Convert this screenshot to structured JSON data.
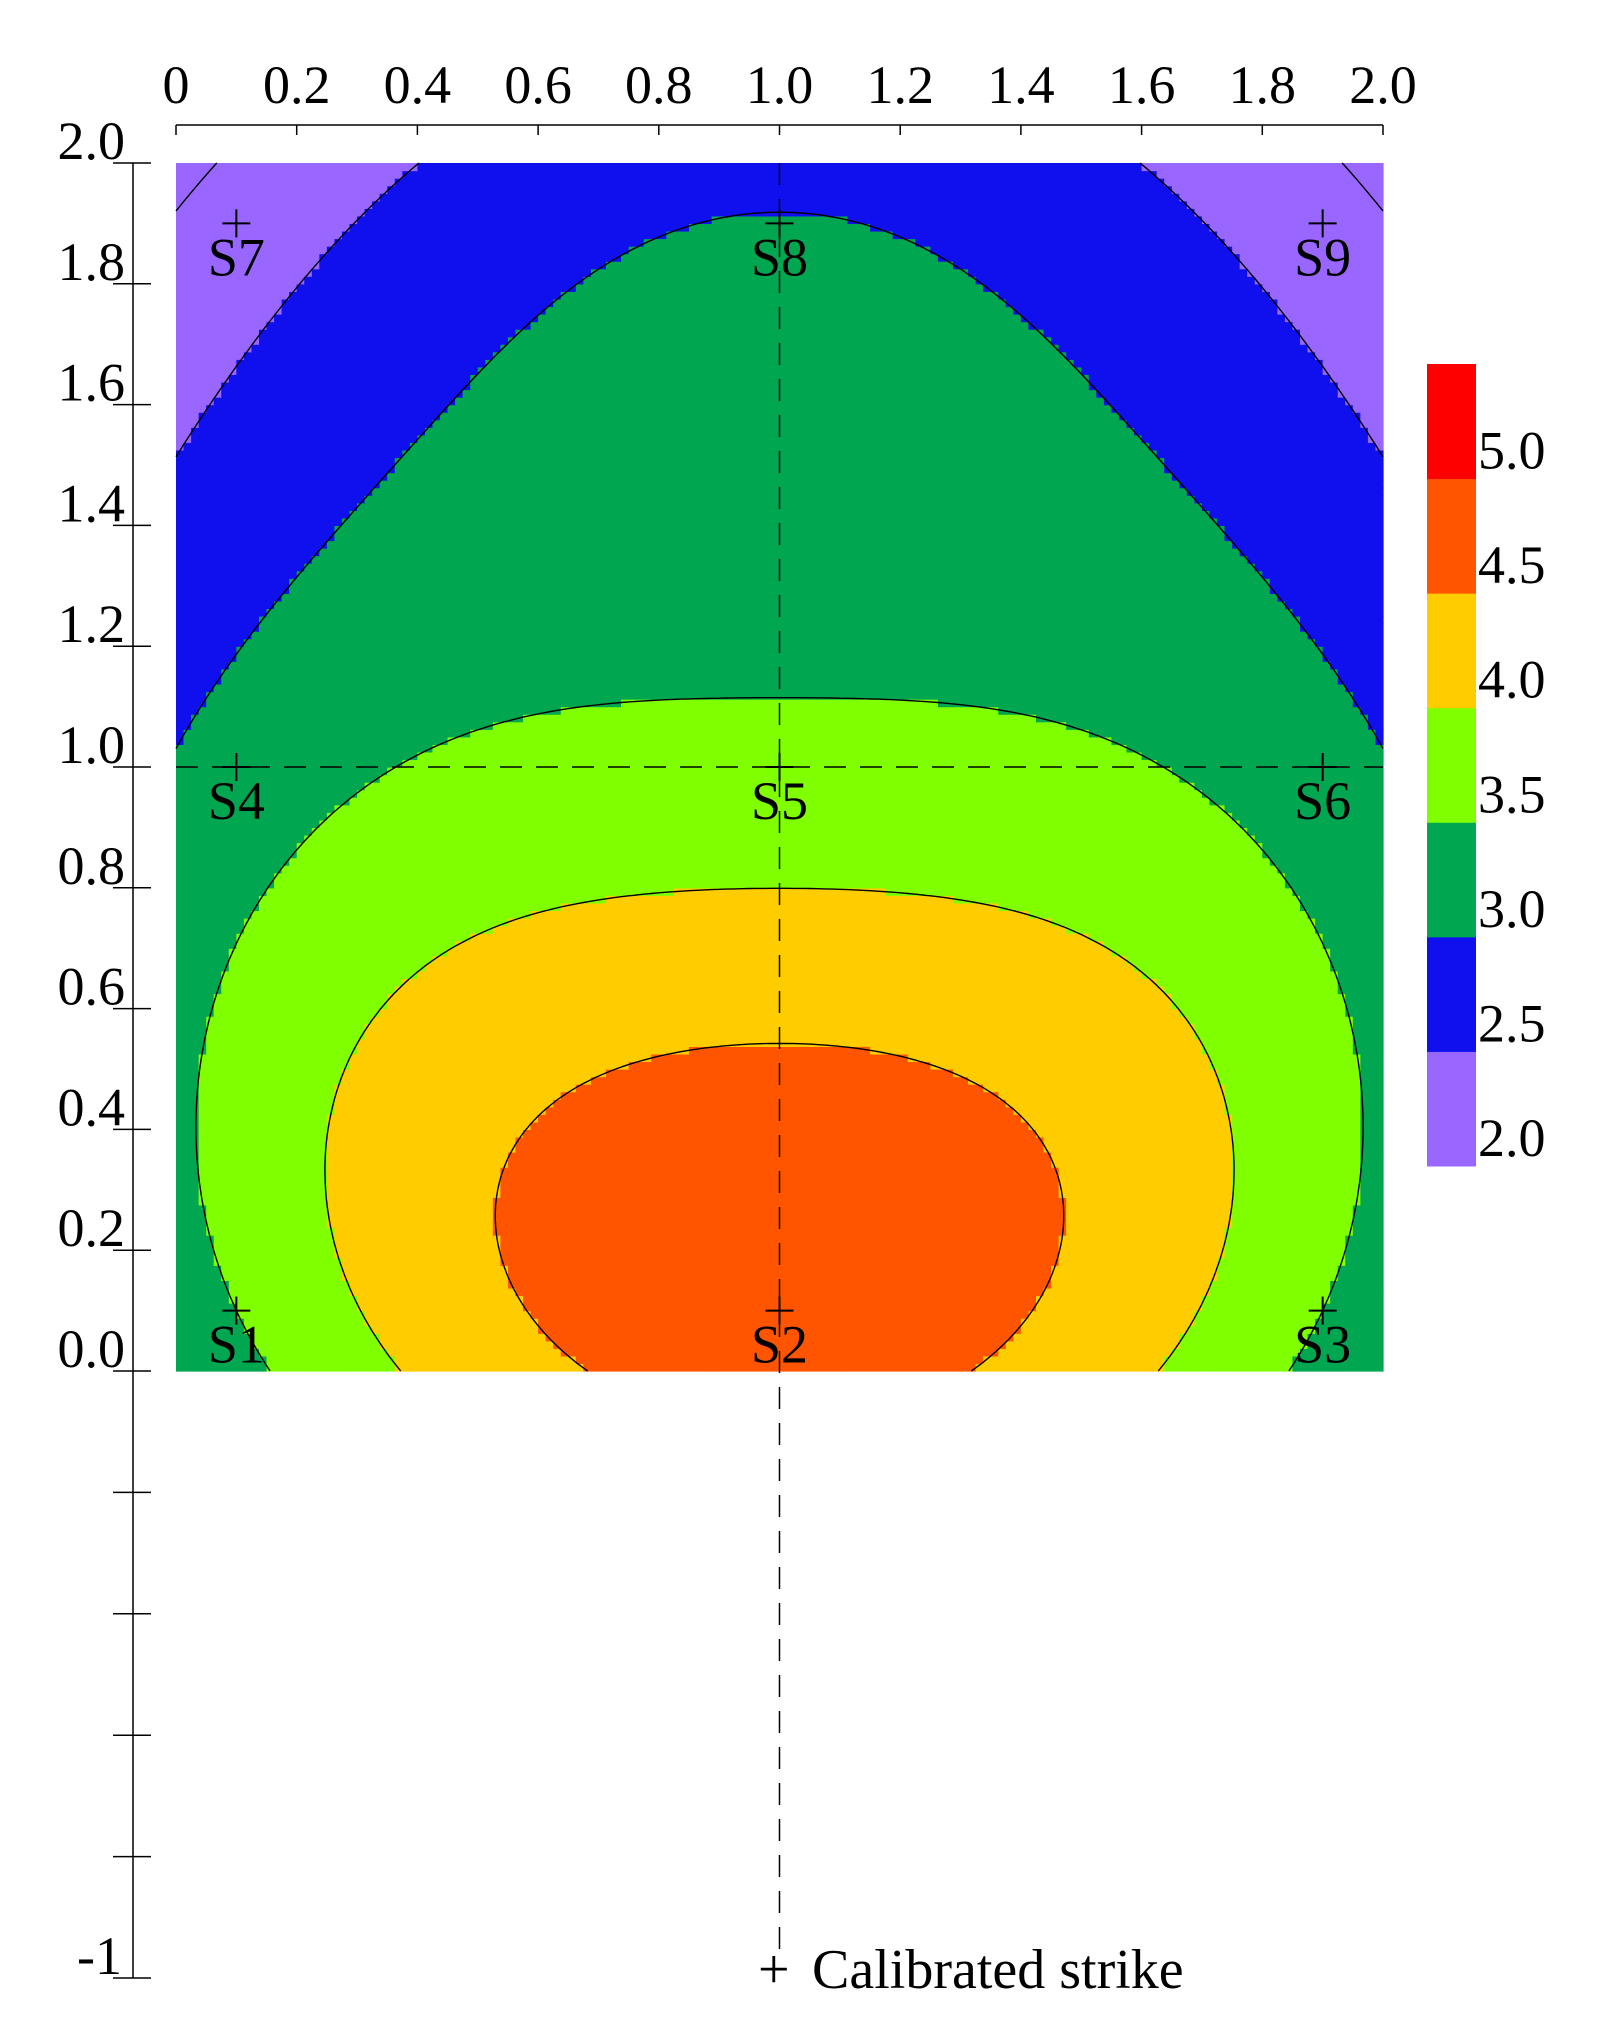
{
  "chart_data": {
    "type": "contour",
    "x_ticks": [
      "0",
      "0.2",
      "0.4",
      "0.6",
      "0.8",
      "1.0",
      "1.2",
      "1.4",
      "1.6",
      "1.8",
      "2.0"
    ],
    "y_ticks": [
      "0.0",
      "0.2",
      "0.4",
      "0.6",
      "0.8",
      "1.0",
      "1.2",
      "1.4",
      "1.6",
      "1.8",
      "2.0"
    ],
    "y_extra_ticks": [
      -0.2,
      -0.4,
      -0.6,
      -0.8
    ],
    "y_bottom_label": "-1",
    "xlim": [
      0,
      2
    ],
    "ylim": [
      -1,
      2
    ],
    "field_extent": {
      "x": [
        0,
        2
      ],
      "y": [
        0,
        2
      ]
    },
    "levels": [
      2.0,
      2.5,
      3.0,
      3.5,
      4.0,
      4.5,
      5.0
    ],
    "colorbar": {
      "bands": [
        {
          "from": 2.0,
          "to": 2.5,
          "color": "#9966ff"
        },
        {
          "from": 2.5,
          "to": 3.0,
          "color": "#1010ee"
        },
        {
          "from": 3.0,
          "to": 3.5,
          "color": "#00a650"
        },
        {
          "from": 3.5,
          "to": 4.0,
          "color": "#80ff00"
        },
        {
          "from": 4.0,
          "to": 4.5,
          "color": "#ffcc00"
        },
        {
          "from": 4.5,
          "to": 5.0,
          "color": "#ff5500"
        },
        {
          "from": 5.0,
          "to": 5.5,
          "color": "#ff0000"
        }
      ],
      "tick_labels": [
        "2.0",
        "2.5",
        "3.0",
        "3.5",
        "4.0",
        "4.5",
        "5.0"
      ]
    },
    "sensors": [
      {
        "name": "S1",
        "x": 0.1,
        "y": 0.1,
        "value": 3.5
      },
      {
        "name": "S2",
        "x": 1.0,
        "y": 0.1,
        "value": 4.8
      },
      {
        "name": "S3",
        "x": 1.9,
        "y": 0.1,
        "value": 3.5
      },
      {
        "name": "S4",
        "x": 0.1,
        "y": 1.0,
        "value": 3.2
      },
      {
        "name": "S5",
        "x": 1.0,
        "y": 1.0,
        "value": 3.65
      },
      {
        "name": "S6",
        "x": 1.9,
        "y": 1.0,
        "value": 3.2
      },
      {
        "name": "S7",
        "x": 0.1,
        "y": 1.9,
        "value": 2.2
      },
      {
        "name": "S8",
        "x": 1.0,
        "y": 1.9,
        "value": 3.02
      },
      {
        "name": "S9",
        "x": 1.9,
        "y": 1.9,
        "value": 2.2
      }
    ],
    "calibrated_strike": {
      "x": 1.0,
      "y": -1.0
    },
    "reference_lines": {
      "vertical_x": 1.0,
      "horizontal_y": 1.0
    },
    "legend": {
      "symbol": "+",
      "label": "Calibrated strike"
    },
    "grid": false
  }
}
